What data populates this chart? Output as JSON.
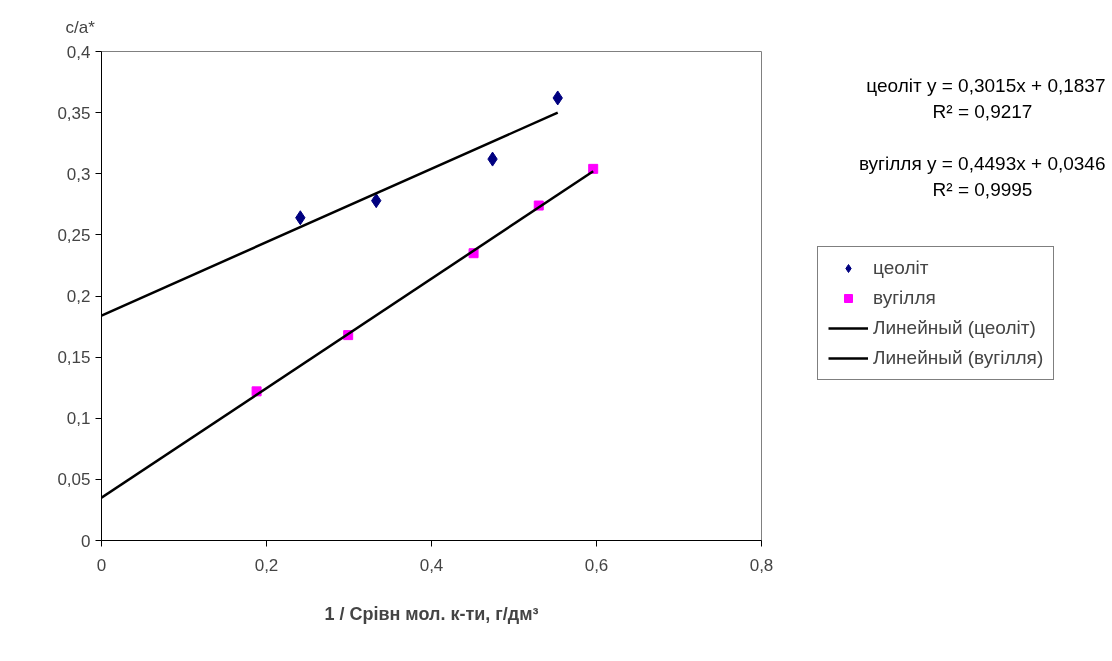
{
  "chart_data": {
    "type": "scatter",
    "xlabel": "1 / Срівн мол. к-ти, г/дм³",
    "ylabel": "c/a*",
    "annotations": [
      "цеоліт y = 0,3015x + 0,1837",
      "R² = 0,9217",
      "вугілля y = 0,4493x + 0,0346",
      "R² = 0,9995"
    ],
    "series": [
      {
        "name": "цеоліт",
        "color": "#000080",
        "marker": "diamond",
        "x": [
          0.241,
          0.333,
          0.474,
          0.553
        ],
        "values": [
          0.264,
          0.278,
          0.312,
          0.362
        ]
      },
      {
        "name": "вугілля",
        "color": "#ff00ff",
        "marker": "square",
        "x": [
          0.188,
          0.299,
          0.451,
          0.53,
          0.596
        ],
        "values": [
          0.122,
          0.168,
          0.235,
          0.274,
          0.304
        ]
      },
      {
        "name": "Линейный (цеоліт)",
        "type": "line",
        "color": "#000000",
        "marker": "none",
        "line_style": "solid",
        "x": [
          0,
          0.553
        ],
        "values": [
          0.184,
          0.35
        ]
      },
      {
        "name": "Линейный (вугілля)",
        "type": "line",
        "color": "#000000",
        "marker": "none",
        "line_style": "solid",
        "x": [
          0,
          0.596
        ],
        "values": [
          0.035,
          0.302
        ]
      }
    ],
    "xlim": [
      0,
      0.8
    ],
    "xticks": [
      0,
      {
        "value": 0.2,
        "label": "0,2"
      },
      {
        "value": 0.4,
        "label": "0,4"
      },
      {
        "value": 0.6,
        "label": "0,6"
      },
      {
        "value": 0.8,
        "label": "0,8"
      }
    ],
    "ylim": [
      0,
      0.4
    ],
    "yticks": [
      0,
      {
        "value": 0.05,
        "label": "0,05"
      },
      {
        "value": 0.1,
        "label": "0,1"
      },
      {
        "value": 0.15,
        "label": "0,15"
      },
      {
        "value": 0.2,
        "label": "0,2"
      },
      {
        "value": 0.25,
        "label": "0,25"
      },
      {
        "value": 0.3,
        "label": "0,3"
      },
      {
        "value": 0.35,
        "label": "0,35"
      },
      {
        "value": 0.4,
        "label": "0,4"
      }
    ],
    "grid": false,
    "legend": "right"
  }
}
